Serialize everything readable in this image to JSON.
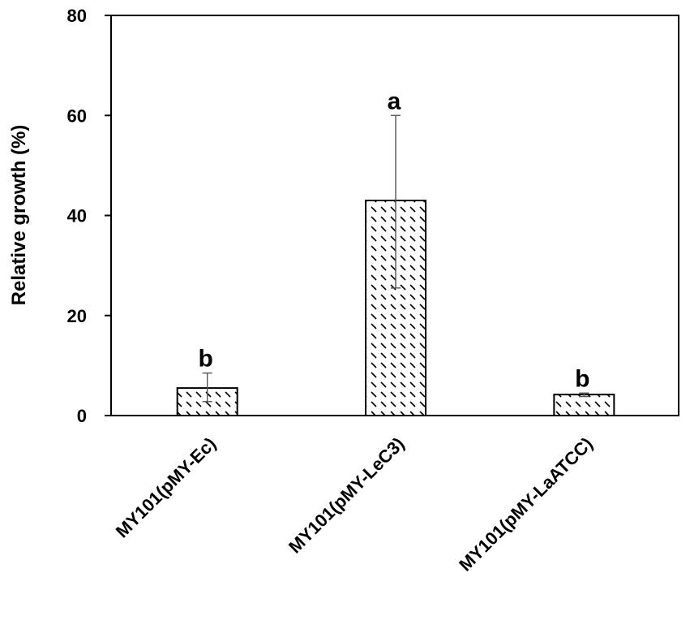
{
  "chart_data": {
    "type": "bar",
    "title": "",
    "xlabel": "",
    "ylabel": "Relative growth (%)",
    "ylim": [
      0,
      80
    ],
    "yticks": [
      0,
      20,
      40,
      60,
      80
    ],
    "grid": false,
    "legend": "none",
    "bar_fill": "diagonal-hatch",
    "colors": {
      "bar_stroke": "#000000",
      "hatch": "#000000",
      "background": "#ffffff",
      "error_bar": "#555555"
    },
    "categories": [
      "MY101(pMY-Ec)",
      "MY101(pMY-LeC3)",
      "MY101(pMY-LaATCC)"
    ],
    "values": [
      5.5,
      43,
      4.2
    ],
    "error_low": [
      2.8,
      25.5,
      3.8
    ],
    "error_high": [
      8.5,
      60,
      4.5
    ],
    "significance": [
      "b",
      "a",
      "b"
    ]
  }
}
